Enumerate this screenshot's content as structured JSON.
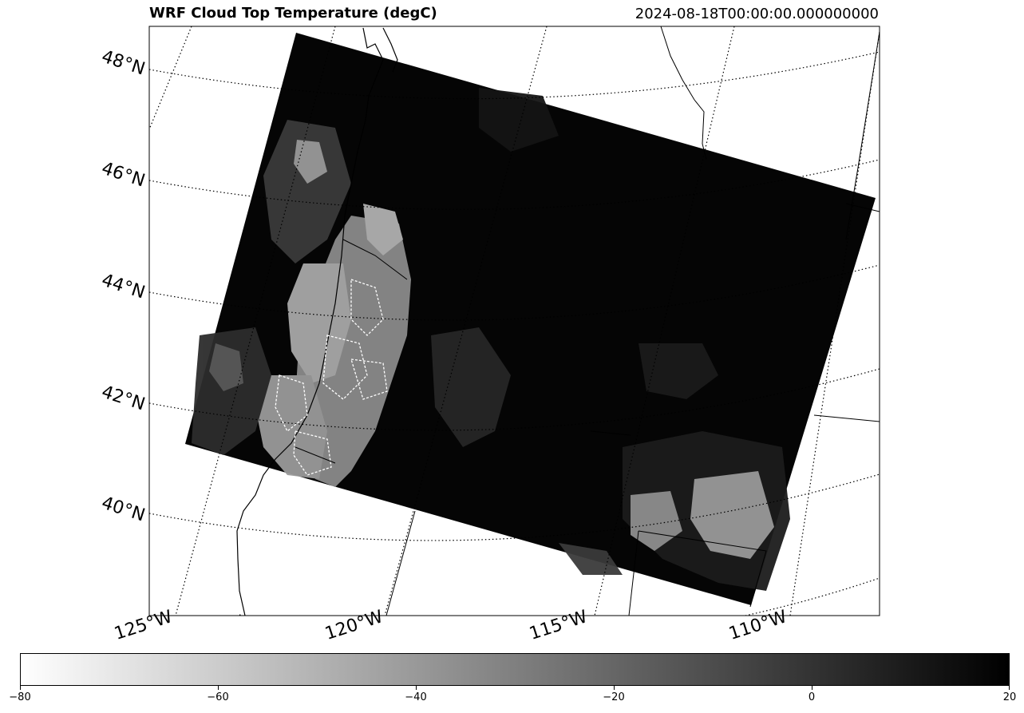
{
  "title": "WRF Cloud Top Temperature (degC)",
  "timestamp": "2024-08-18T00:00:00.000000000",
  "map": {
    "projection": "Lambert conformal (rotated grid)",
    "lat_labels": [
      "48°N",
      "46°N",
      "44°N",
      "42°N",
      "40°N"
    ],
    "lon_labels": [
      "125°W",
      "120°W",
      "115°W",
      "110°W"
    ],
    "gridlines": "dotted",
    "field_colormap": "Greys (white = cold cloud tops, black = warm/clear)"
  },
  "colorbar": {
    "min": -80,
    "max": 20,
    "ticks": [
      "−80",
      "−60",
      "−40",
      "−20",
      "0",
      "20"
    ],
    "colors": {
      "cold": "#ffffff",
      "warm": "#000000"
    }
  }
}
